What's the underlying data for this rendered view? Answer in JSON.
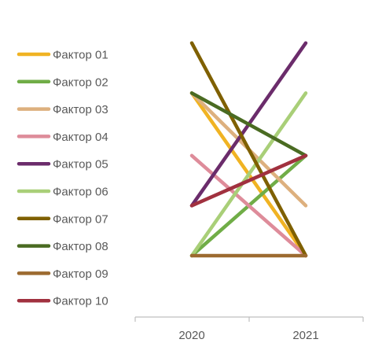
{
  "chart_data": {
    "type": "line",
    "categories": [
      "2020",
      "2021"
    ],
    "ylim": [
      0,
      10
    ],
    "grid": false,
    "legend_position": "left",
    "series": [
      {
        "name": "Фактор 01",
        "color": "#F0B323",
        "values": [
          6.5,
          0
        ]
      },
      {
        "name": "Фактор 02",
        "color": "#70AD47",
        "values": [
          0,
          4
        ]
      },
      {
        "name": "Фактор 03",
        "color": "#DDB07E",
        "values": [
          6.5,
          2
        ]
      },
      {
        "name": "Фактор 04",
        "color": "#DE8C9A",
        "values": [
          4,
          0
        ]
      },
      {
        "name": "Фактор 05",
        "color": "#6B2C6B",
        "values": [
          2,
          8.5
        ]
      },
      {
        "name": "Фактор 06",
        "color": "#A9CF78",
        "values": [
          0,
          6.5
        ]
      },
      {
        "name": "Фактор 07",
        "color": "#7F6000",
        "values": [
          8.5,
          0
        ]
      },
      {
        "name": "Фактор 08",
        "color": "#4A6B22",
        "values": [
          6.5,
          4
        ]
      },
      {
        "name": "Фактор 09",
        "color": "#9C6A30",
        "values": [
          0,
          0
        ]
      },
      {
        "name": "Фактор 10",
        "color": "#A1313F",
        "values": [
          2,
          4
        ]
      }
    ]
  }
}
